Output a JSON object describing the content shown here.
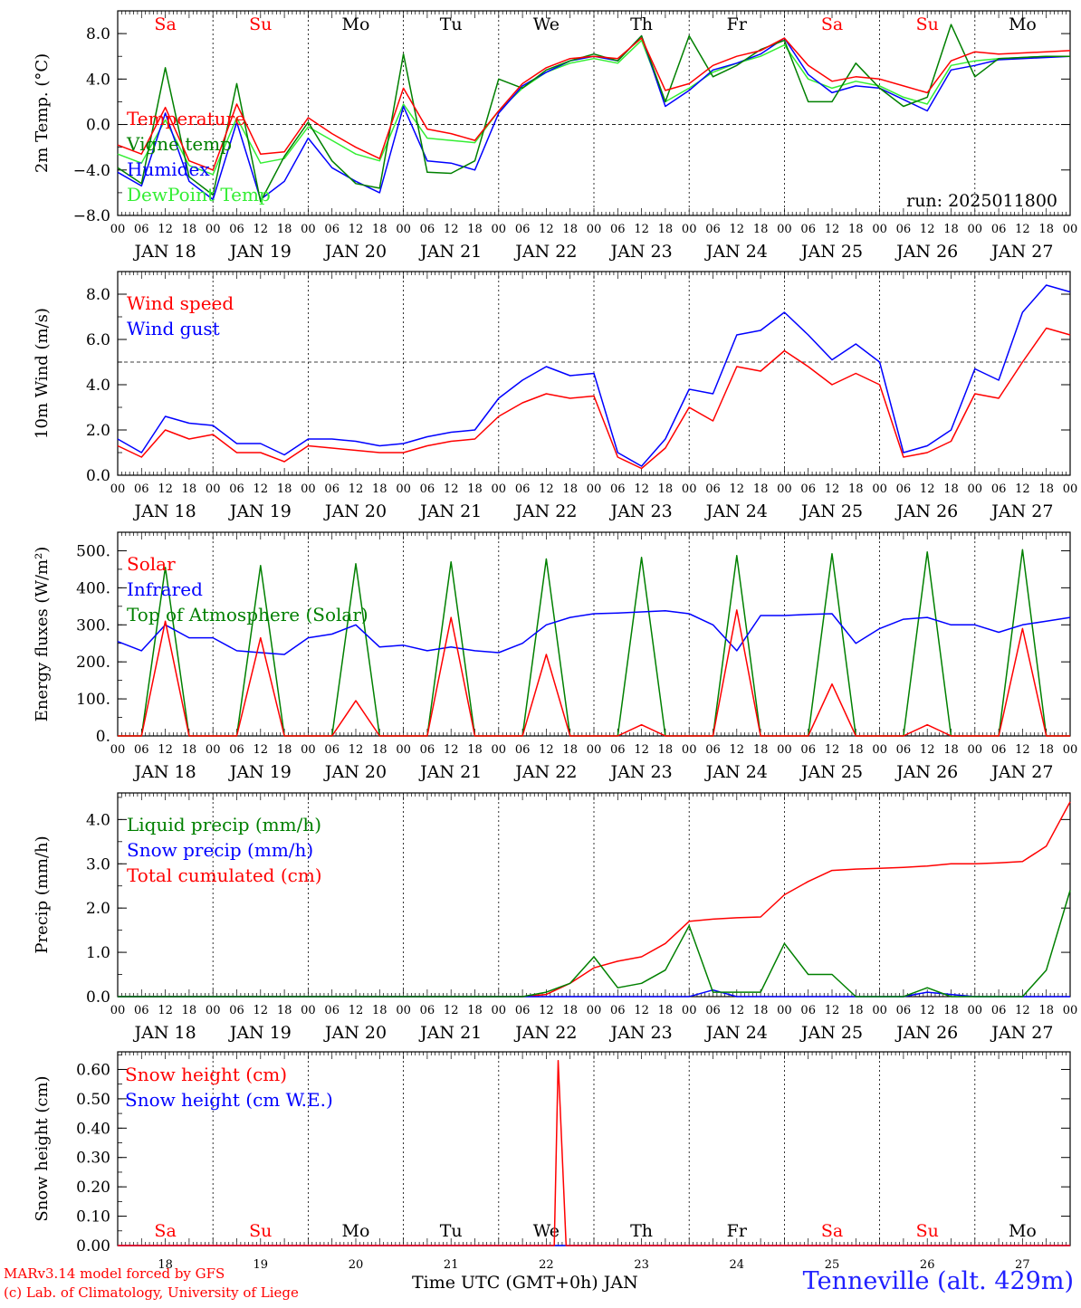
{
  "run_label": "run: 2025011800",
  "footer": {
    "model": "MARv3.14 model forced by GFS",
    "credit": "(c) Lab. of Climatology, University of Liege",
    "station": "Tenneville (alt. 429m)",
    "x_title": "Time UTC (GMT+0h) JAN"
  },
  "days": {
    "weekdays": [
      "Sa",
      "Su",
      "Mo",
      "Tu",
      "We",
      "Th",
      "Fr",
      "Sa",
      "Su",
      "Mo"
    ],
    "weekend_flags": [
      true,
      true,
      false,
      false,
      false,
      false,
      false,
      true,
      true,
      false
    ],
    "date_labels": [
      "JAN 18",
      "JAN 19",
      "JAN 20",
      "JAN 21",
      "JAN 22",
      "JAN 23",
      "JAN 24",
      "JAN 25",
      "JAN 26",
      "JAN 27"
    ],
    "day_numbers": [
      "18",
      "19",
      "20",
      "21",
      "22",
      "23",
      "24",
      "25",
      "26",
      "27"
    ],
    "hour_labels": [
      "00",
      "06",
      "12",
      "18"
    ],
    "end_hour_label": "00"
  },
  "colors": {
    "red": "#ff0000",
    "blue": "#0000ff",
    "green": "#008000",
    "lightgreen": "#33ee33",
    "station": "#2020ff"
  },
  "chart_data": [
    {
      "type": "line",
      "id": "temperature",
      "ylabel": "2m Temp. (°C)",
      "ylim": [
        -8,
        10
      ],
      "yticks": [
        -8,
        -4,
        0,
        4,
        8
      ],
      "ytick_labels": [
        "−8.0",
        "−4.0",
        "0.0",
        "4.0",
        "8.0"
      ],
      "reference_line": 0,
      "x_hours": [
        0,
        6,
        12,
        18,
        24,
        30,
        36,
        42,
        48,
        54,
        60,
        66,
        72,
        78,
        84,
        90,
        96,
        102,
        108,
        114,
        120,
        126,
        132,
        138,
        144,
        150,
        156,
        162,
        168,
        174,
        180,
        186,
        192,
        198,
        204,
        210,
        216,
        222,
        228,
        234,
        240
      ],
      "series": [
        {
          "name": "Temperature",
          "color": "#ff0000",
          "values": [
            -1.8,
            -2.6,
            1.5,
            -3.2,
            -4.0,
            1.8,
            -2.6,
            -2.4,
            0.6,
            -0.8,
            -2.0,
            -3.0,
            3.2,
            -0.4,
            -0.8,
            -1.4,
            1.2,
            3.6,
            5.0,
            5.8,
            6.0,
            5.8,
            7.6,
            3.0,
            3.6,
            5.2,
            6.0,
            6.5,
            7.6,
            5.2,
            3.8,
            4.2,
            4.0,
            3.4,
            2.8,
            5.6,
            6.4,
            6.2,
            6.3,
            6.4,
            6.5
          ]
        },
        {
          "name": "Vigne temp",
          "color": "#008000",
          "values": [
            -3.8,
            -5.2,
            5.0,
            -4.6,
            -6.2,
            3.6,
            -6.8,
            -2.8,
            0.2,
            -3.2,
            -5.2,
            -5.6,
            6.2,
            -4.2,
            -4.3,
            -3.2,
            4.0,
            3.2,
            4.8,
            5.6,
            6.2,
            5.6,
            7.8,
            2.0,
            7.8,
            4.2,
            5.2,
            6.6,
            7.4,
            2.0,
            2.0,
            5.4,
            3.2,
            1.6,
            2.4,
            8.8,
            4.2,
            5.8,
            5.9,
            6.0,
            6.0
          ]
        },
        {
          "name": "Humidex",
          "color": "#0000ff",
          "values": [
            -4.2,
            -5.4,
            1.0,
            -5.0,
            -6.6,
            0.2,
            -6.6,
            -5.0,
            -1.2,
            -3.8,
            -5.0,
            -6.0,
            1.6,
            -3.2,
            -3.4,
            -4.0,
            1.0,
            3.4,
            4.6,
            5.6,
            6.0,
            5.6,
            7.8,
            1.6,
            3.0,
            4.8,
            5.4,
            6.2,
            7.6,
            4.4,
            2.8,
            3.4,
            3.2,
            2.2,
            1.2,
            4.8,
            5.2,
            5.7,
            5.8,
            5.9,
            6.0
          ]
        },
        {
          "name": "DewPoint Temp",
          "color": "#33ee33",
          "values": [
            -2.6,
            -3.4,
            0.4,
            -3.6,
            -4.4,
            0.6,
            -3.4,
            -3.0,
            -0.2,
            -1.4,
            -2.6,
            -3.2,
            1.8,
            -1.2,
            -1.4,
            -1.6,
            1.2,
            3.2,
            4.6,
            5.4,
            5.8,
            5.4,
            7.4,
            2.0,
            3.2,
            4.6,
            5.4,
            6.0,
            7.0,
            4.0,
            3.2,
            3.8,
            3.4,
            2.4,
            1.8,
            5.2,
            5.6,
            5.8,
            5.9,
            6.0,
            6.0
          ]
        }
      ]
    },
    {
      "type": "line",
      "id": "wind",
      "ylabel": "10m Wind (m/s)",
      "ylim": [
        0,
        9
      ],
      "yticks": [
        0,
        2,
        4,
        6,
        8
      ],
      "ytick_labels": [
        "0.0",
        "2.0",
        "4.0",
        "6.0",
        "8.0"
      ],
      "reference_line": 5,
      "x_hours": [
        0,
        6,
        12,
        18,
        24,
        30,
        36,
        42,
        48,
        54,
        60,
        66,
        72,
        78,
        84,
        90,
        96,
        102,
        108,
        114,
        120,
        126,
        132,
        138,
        144,
        150,
        156,
        162,
        168,
        174,
        180,
        186,
        192,
        198,
        204,
        210,
        216,
        222,
        228,
        234,
        240
      ],
      "series": [
        {
          "name": "Wind speed",
          "color": "#ff0000",
          "values": [
            1.3,
            0.8,
            2.0,
            1.6,
            1.8,
            1.0,
            1.0,
            0.6,
            1.3,
            1.2,
            1.1,
            1.0,
            1.0,
            1.3,
            1.5,
            1.6,
            2.6,
            3.2,
            3.6,
            3.4,
            3.5,
            0.8,
            0.3,
            1.2,
            3.0,
            2.4,
            4.8,
            4.6,
            5.5,
            4.8,
            4.0,
            4.5,
            4.0,
            0.8,
            1.0,
            1.5,
            3.6,
            3.4,
            5.0,
            6.5,
            6.2
          ]
        },
        {
          "name": "Wind gust",
          "color": "#0000ff",
          "values": [
            1.6,
            1.0,
            2.6,
            2.3,
            2.2,
            1.4,
            1.4,
            0.9,
            1.6,
            1.6,
            1.5,
            1.3,
            1.4,
            1.7,
            1.9,
            2.0,
            3.4,
            4.2,
            4.8,
            4.4,
            4.5,
            1.0,
            0.4,
            1.6,
            3.8,
            3.6,
            6.2,
            6.4,
            7.2,
            6.2,
            5.1,
            5.8,
            5.0,
            1.0,
            1.3,
            2.0,
            4.7,
            4.2,
            7.2,
            8.4,
            8.1
          ]
        }
      ]
    },
    {
      "type": "line",
      "id": "energy",
      "ylabel": "Energy fluxes (W/m²)",
      "ylim": [
        0,
        550
      ],
      "yticks": [
        0,
        100,
        200,
        300,
        400,
        500
      ],
      "ytick_labels": [
        "0.",
        "100.",
        "200.",
        "300.",
        "400.",
        "500."
      ],
      "x_hours": [
        0,
        6,
        12,
        18,
        24,
        30,
        36,
        42,
        48,
        54,
        60,
        66,
        72,
        78,
        84,
        90,
        96,
        102,
        108,
        114,
        120,
        126,
        132,
        138,
        144,
        150,
        156,
        162,
        168,
        174,
        180,
        186,
        192,
        198,
        204,
        210,
        216,
        222,
        228,
        234,
        240
      ],
      "series": [
        {
          "name": "Solar",
          "color": "#ff0000",
          "values": [
            0,
            0,
            310,
            0,
            0,
            0,
            265,
            0,
            0,
            0,
            95,
            0,
            0,
            0,
            320,
            0,
            0,
            0,
            220,
            0,
            0,
            0,
            30,
            0,
            0,
            0,
            340,
            0,
            0,
            0,
            140,
            0,
            0,
            0,
            30,
            0,
            0,
            0,
            290,
            0,
            0
          ]
        },
        {
          "name": "Infrared",
          "color": "#0000ff",
          "values": [
            255,
            230,
            300,
            265,
            265,
            230,
            225,
            220,
            265,
            275,
            300,
            240,
            245,
            230,
            240,
            230,
            225,
            250,
            300,
            320,
            330,
            332,
            335,
            338,
            330,
            300,
            230,
            325,
            325,
            328,
            330,
            250,
            290,
            315,
            320,
            300,
            300,
            280,
            300,
            310,
            320
          ]
        },
        {
          "name": "Top of Atmosphere (Solar)",
          "color": "#008000",
          "values": [
            0,
            0,
            455,
            0,
            0,
            0,
            460,
            0,
            0,
            0,
            465,
            0,
            0,
            0,
            470,
            0,
            0,
            0,
            478,
            0,
            0,
            0,
            482,
            0,
            0,
            0,
            487,
            0,
            0,
            0,
            492,
            0,
            0,
            0,
            497,
            0,
            0,
            0,
            503,
            0,
            0
          ]
        }
      ]
    },
    {
      "type": "line",
      "id": "precip",
      "ylabel": "Precip (mm/h)",
      "ylim": [
        0,
        4.6
      ],
      "yticks": [
        0,
        1,
        2,
        3,
        4
      ],
      "ytick_labels": [
        "0.0",
        "1.0",
        "2.0",
        "3.0",
        "4.0"
      ],
      "x_hours": [
        0,
        6,
        12,
        18,
        24,
        30,
        36,
        42,
        48,
        54,
        60,
        66,
        72,
        78,
        84,
        90,
        96,
        102,
        108,
        114,
        120,
        126,
        132,
        138,
        144,
        150,
        156,
        162,
        168,
        174,
        180,
        186,
        192,
        198,
        204,
        210,
        216,
        222,
        228,
        234,
        240
      ],
      "series": [
        {
          "name": "Liquid precip (mm/h)",
          "color": "#008000",
          "values": [
            0,
            0,
            0,
            0,
            0,
            0,
            0,
            0,
            0,
            0,
            0,
            0,
            0,
            0,
            0,
            0,
            0,
            0,
            0.1,
            0.3,
            0.9,
            0.2,
            0.3,
            0.6,
            1.6,
            0.1,
            0.1,
            0.1,
            1.2,
            0.5,
            0.5,
            0,
            0,
            0,
            0.2,
            0,
            0,
            0,
            0,
            0.6,
            2.4
          ]
        },
        {
          "name": "Snow precip (mm/h)",
          "color": "#0000ff",
          "values": [
            0,
            0,
            0,
            0,
            0,
            0,
            0,
            0,
            0,
            0,
            0,
            0,
            0,
            0,
            0,
            0,
            0,
            0,
            0,
            0,
            0,
            0,
            0,
            0,
            0,
            0.15,
            0,
            0,
            0,
            0,
            0,
            0,
            0,
            0,
            0.1,
            0.05,
            0,
            0,
            0,
            0,
            0
          ]
        },
        {
          "name": "Total cumulated (cm)",
          "color": "#ff0000",
          "values": [
            0,
            0,
            0,
            0,
            0,
            0,
            0,
            0,
            0,
            0,
            0,
            0,
            0,
            0,
            0,
            0,
            0,
            0,
            0.05,
            0.3,
            0.65,
            0.8,
            0.9,
            1.2,
            1.7,
            1.75,
            1.78,
            1.8,
            2.3,
            2.6,
            2.85,
            2.88,
            2.9,
            2.92,
            2.95,
            3.0,
            3.0,
            3.02,
            3.05,
            3.4,
            4.4
          ]
        }
      ]
    },
    {
      "type": "line",
      "id": "snow",
      "ylabel": "Snow height (cm)",
      "ylim": [
        0,
        0.66
      ],
      "yticks": [
        0,
        0.1,
        0.2,
        0.3,
        0.4,
        0.5,
        0.6
      ],
      "ytick_labels": [
        "0.00",
        "0.10",
        "0.20",
        "0.30",
        "0.40",
        "0.50",
        "0.60"
      ],
      "x_hours": [
        0,
        24,
        48,
        72,
        96,
        108,
        110,
        111,
        113,
        116,
        120,
        144,
        168,
        192,
        216,
        240
      ],
      "series": [
        {
          "name": "Snow height (cm)",
          "color": "#ff0000",
          "values": [
            0,
            0,
            0,
            0,
            0,
            0,
            0,
            0.63,
            0,
            0,
            0,
            0,
            0,
            0,
            0,
            0
          ]
        },
        {
          "name": "Snow height (cm W.E.)",
          "color": "#0000ff",
          "values": [
            0,
            0,
            0,
            0,
            0,
            0,
            0,
            0,
            0,
            0,
            0,
            0,
            0,
            0,
            0,
            0
          ]
        }
      ]
    }
  ]
}
